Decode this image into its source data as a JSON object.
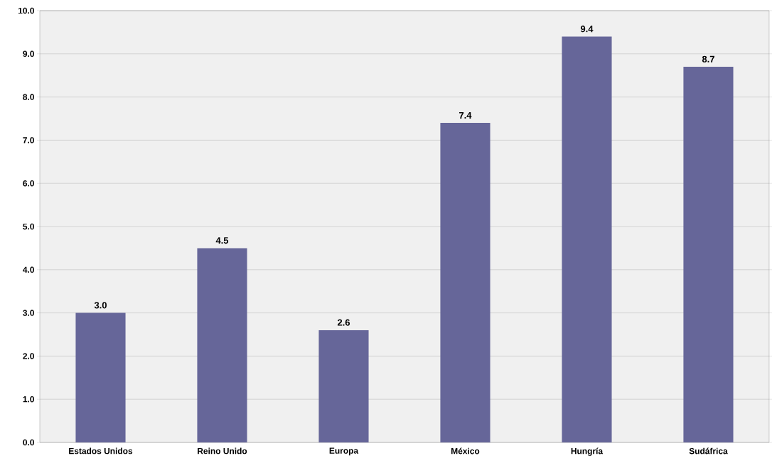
{
  "chart_data": {
    "type": "bar",
    "categories": [
      "Estados Unidos",
      "Reino Unido",
      "Europa",
      "México",
      "Hungría",
      "Sudáfrica"
    ],
    "values": [
      3.0,
      4.5,
      2.6,
      7.4,
      9.4,
      8.7
    ],
    "value_labels": [
      "3.0",
      "4.5",
      "2.6",
      "7.4",
      "9.4",
      "8.7"
    ],
    "color": "#666699",
    "ylim": [
      0,
      10
    ],
    "yticks": [
      {
        "value": 0,
        "label": "0.0"
      },
      {
        "value": 1,
        "label": "1.0"
      },
      {
        "value": 2,
        "label": "2.0"
      },
      {
        "value": 3,
        "label": "3.0"
      },
      {
        "value": 4,
        "label": "4.0"
      },
      {
        "value": 5,
        "label": "5.0"
      },
      {
        "value": 6,
        "label": "6.0"
      },
      {
        "value": 7,
        "label": "7.0"
      },
      {
        "value": 8,
        "label": "8.0"
      },
      {
        "value": 9,
        "label": "9.0"
      },
      {
        "value": 10,
        "label": "10.0"
      }
    ],
    "grid": "y"
  }
}
